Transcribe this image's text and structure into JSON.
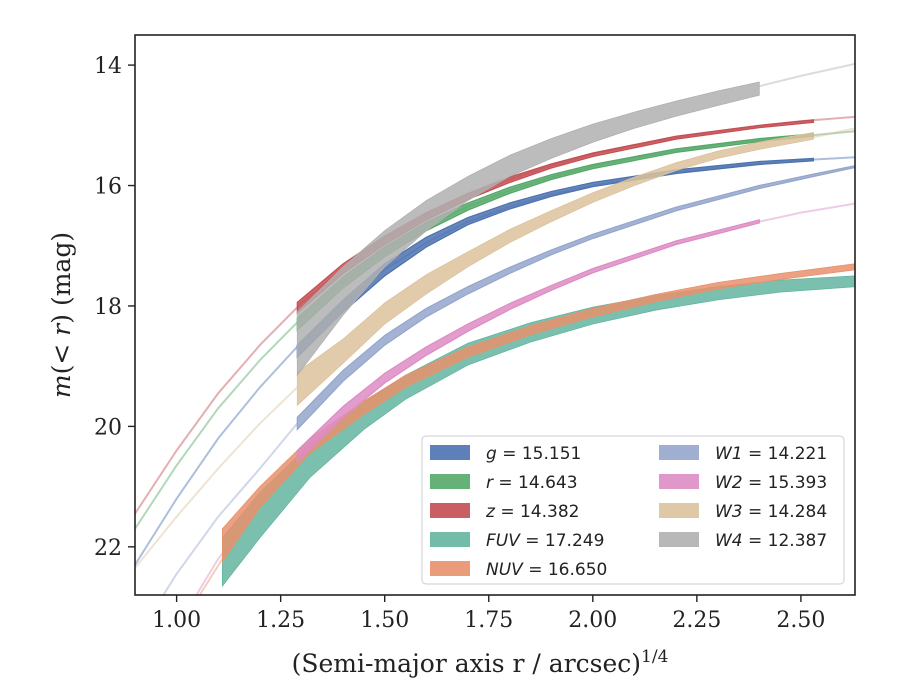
{
  "chart_data": {
    "type": "line",
    "title": "",
    "xlabel": "(Semi-major axis r / arcsec)",
    "xlabel_exponent": "1/4",
    "ylabel": "m(<r) (mag)",
    "xlim": [
      0.9,
      2.63
    ],
    "ylim": [
      22.8,
      13.5
    ],
    "y_inverted": true,
    "x_ticks": [
      "1.00",
      "1.25",
      "1.50",
      "1.75",
      "2.00",
      "2.25",
      "2.50"
    ],
    "y_ticks": [
      "14",
      "16",
      "18",
      "20",
      "22"
    ],
    "grid": false,
    "legend_position": "lower-right",
    "legend_columns": 2,
    "series": [
      {
        "name": "g = 15.151",
        "color": "#4c72b0",
        "faint": [
          [
            0.9,
            22.3
          ],
          [
            1.0,
            21.2
          ],
          [
            1.1,
            20.2
          ],
          [
            1.2,
            19.35
          ],
          [
            1.3,
            18.6
          ],
          [
            1.4,
            17.95
          ],
          [
            1.5,
            17.4
          ],
          [
            1.6,
            16.95
          ],
          [
            1.7,
            16.6
          ],
          [
            1.8,
            16.35
          ],
          [
            1.9,
            16.15
          ],
          [
            2.0,
            16.0
          ],
          [
            2.1,
            15.88
          ],
          [
            2.2,
            15.78
          ],
          [
            2.3,
            15.7
          ],
          [
            2.4,
            15.64
          ],
          [
            2.5,
            15.58
          ],
          [
            2.63,
            15.53
          ]
        ],
        "band": [
          [
            1.29,
            18.85,
            18.65
          ],
          [
            1.4,
            18.1,
            17.9
          ],
          [
            1.5,
            17.5,
            17.3
          ],
          [
            1.6,
            17.02,
            16.86
          ],
          [
            1.7,
            16.65,
            16.53
          ],
          [
            1.8,
            16.39,
            16.29
          ],
          [
            1.9,
            16.18,
            16.1
          ],
          [
            2.0,
            16.02,
            15.95
          ],
          [
            2.2,
            15.8,
            15.74
          ],
          [
            2.4,
            15.65,
            15.6
          ],
          [
            2.53,
            15.59,
            15.55
          ]
        ],
        "band_shape": "line"
      },
      {
        "name": "r = 14.643",
        "color": "#55a868",
        "faint": [
          [
            0.9,
            21.7
          ],
          [
            1.0,
            20.65
          ],
          [
            1.1,
            19.7
          ],
          [
            1.2,
            18.9
          ],
          [
            1.3,
            18.2
          ],
          [
            1.4,
            17.6
          ],
          [
            1.5,
            17.1
          ],
          [
            1.6,
            16.68
          ],
          [
            1.7,
            16.35
          ],
          [
            1.8,
            16.08
          ],
          [
            1.9,
            15.86
          ],
          [
            2.0,
            15.68
          ],
          [
            2.1,
            15.54
          ],
          [
            2.2,
            15.42
          ],
          [
            2.3,
            15.32
          ],
          [
            2.4,
            15.24
          ],
          [
            2.5,
            15.18
          ],
          [
            2.63,
            15.1
          ]
        ],
        "band": [
          [
            1.29,
            18.4,
            18.2
          ],
          [
            1.4,
            17.7,
            17.52
          ],
          [
            1.5,
            17.18,
            17.02
          ],
          [
            1.6,
            16.75,
            16.61
          ],
          [
            1.7,
            16.41,
            16.29
          ],
          [
            1.8,
            16.13,
            16.03
          ],
          [
            1.9,
            15.9,
            15.82
          ],
          [
            2.0,
            15.72,
            15.65
          ],
          [
            2.2,
            15.45,
            15.39
          ],
          [
            2.4,
            15.27,
            15.22
          ],
          [
            2.53,
            15.18,
            15.14
          ]
        ],
        "band_shape": "line"
      },
      {
        "name": "z = 14.382",
        "color": "#c44e52",
        "faint": [
          [
            0.9,
            21.45
          ],
          [
            1.0,
            20.4
          ],
          [
            1.1,
            19.45
          ],
          [
            1.2,
            18.65
          ],
          [
            1.3,
            17.95
          ],
          [
            1.4,
            17.38
          ],
          [
            1.5,
            16.9
          ],
          [
            1.6,
            16.5
          ],
          [
            1.7,
            16.17
          ],
          [
            1.8,
            15.9
          ],
          [
            1.9,
            15.67
          ],
          [
            2.0,
            15.48
          ],
          [
            2.1,
            15.33
          ],
          [
            2.2,
            15.2
          ],
          [
            2.3,
            15.1
          ],
          [
            2.4,
            15.01
          ],
          [
            2.5,
            14.93
          ],
          [
            2.63,
            14.86
          ]
        ],
        "band": [
          [
            1.29,
            18.12,
            17.94
          ],
          [
            1.4,
            17.46,
            17.3
          ],
          [
            1.5,
            16.98,
            16.84
          ],
          [
            1.6,
            16.57,
            16.45
          ],
          [
            1.7,
            16.23,
            16.13
          ],
          [
            1.8,
            15.95,
            15.86
          ],
          [
            1.9,
            15.71,
            15.64
          ],
          [
            2.0,
            15.52,
            15.46
          ],
          [
            2.2,
            15.23,
            15.18
          ],
          [
            2.4,
            15.04,
            15.0
          ],
          [
            2.53,
            14.95,
            14.91
          ]
        ],
        "band_shape": "line"
      },
      {
        "name": "FUV = 17.249",
        "color": "#64b5a0",
        "faint": [],
        "band": [
          [
            1.11,
            22.65,
            21.85
          ],
          [
            1.2,
            21.85,
            21.1
          ],
          [
            1.32,
            20.85,
            20.3
          ],
          [
            1.45,
            20.05,
            19.6
          ],
          [
            1.55,
            19.55,
            19.15
          ],
          [
            1.7,
            18.98,
            18.62
          ],
          [
            1.85,
            18.6,
            18.28
          ],
          [
            2.0,
            18.3,
            18.02
          ],
          [
            2.15,
            18.07,
            17.83
          ],
          [
            2.3,
            17.9,
            17.68
          ],
          [
            2.45,
            17.77,
            17.57
          ],
          [
            2.63,
            17.68,
            17.5
          ]
        ],
        "band_shape": "band"
      },
      {
        "name": "NUV = 16.650",
        "color": "#e8916c",
        "faint": [
          [
            1.0,
            23.5
          ],
          [
            1.06,
            22.75
          ],
          [
            1.11,
            22.2
          ]
        ],
        "band": [
          [
            1.11,
            22.25,
            21.7
          ],
          [
            1.2,
            21.35,
            21.0
          ],
          [
            1.32,
            20.45,
            20.2
          ],
          [
            1.45,
            19.8,
            19.58
          ],
          [
            1.55,
            19.35,
            19.15
          ],
          [
            1.7,
            18.85,
            18.68
          ],
          [
            1.85,
            18.48,
            18.33
          ],
          [
            2.0,
            18.18,
            18.04
          ],
          [
            2.15,
            17.93,
            17.81
          ],
          [
            2.3,
            17.72,
            17.61
          ],
          [
            2.45,
            17.56,
            17.46
          ],
          [
            2.63,
            17.4,
            17.3
          ]
        ],
        "band_shape": "band"
      },
      {
        "name": "W1 = 14.221",
        "color": "#94a6cc",
        "faint": [
          [
            0.95,
            23.0
          ],
          [
            1.0,
            22.45
          ],
          [
            1.1,
            21.5
          ],
          [
            1.2,
            20.7
          ],
          [
            1.29,
            19.95
          ]
        ],
        "band": [
          [
            1.29,
            20.05,
            19.85
          ],
          [
            1.4,
            19.25,
            19.07
          ],
          [
            1.5,
            18.65,
            18.49
          ],
          [
            1.6,
            18.18,
            18.04
          ],
          [
            1.7,
            17.8,
            17.68
          ],
          [
            1.8,
            17.46,
            17.36
          ],
          [
            1.9,
            17.15,
            17.07
          ],
          [
            2.0,
            16.88,
            16.81
          ],
          [
            2.2,
            16.42,
            16.36
          ],
          [
            2.4,
            16.05,
            16.0
          ],
          [
            2.53,
            15.85,
            15.81
          ],
          [
            2.63,
            15.7,
            15.67
          ]
        ],
        "band_shape": "line"
      },
      {
        "name": "W2 = 15.393",
        "color": "#dd8cc4",
        "faint": [
          [
            1.03,
            23.0
          ],
          [
            1.1,
            22.2
          ],
          [
            1.2,
            21.3
          ],
          [
            1.29,
            20.6
          ],
          [
            2.4,
            16.6
          ],
          [
            2.5,
            16.45
          ],
          [
            2.63,
            16.3
          ]
        ],
        "band": [
          [
            1.29,
            20.6,
            20.4
          ],
          [
            1.4,
            19.85,
            19.67
          ],
          [
            1.5,
            19.28,
            19.12
          ],
          [
            1.6,
            18.82,
            18.68
          ],
          [
            1.7,
            18.42,
            18.3
          ],
          [
            1.8,
            18.06,
            17.96
          ],
          [
            1.9,
            17.74,
            17.66
          ],
          [
            2.0,
            17.45,
            17.38
          ],
          [
            2.2,
            16.98,
            16.92
          ],
          [
            2.4,
            16.62,
            16.57
          ]
        ],
        "band_shape": "line"
      },
      {
        "name": "W3 = 14.284",
        "color": "#dcc29c",
        "faint": [
          [
            0.9,
            22.35
          ],
          [
            1.0,
            21.5
          ],
          [
            1.1,
            20.7
          ],
          [
            1.2,
            19.95
          ],
          [
            1.29,
            19.35
          ],
          [
            2.53,
            15.2
          ],
          [
            2.63,
            15.05
          ]
        ],
        "band": [
          [
            1.29,
            19.65,
            19.1
          ],
          [
            1.4,
            18.95,
            18.55
          ],
          [
            1.5,
            18.3,
            17.95
          ],
          [
            1.6,
            17.8,
            17.48
          ],
          [
            1.7,
            17.35,
            17.1
          ],
          [
            1.8,
            16.95,
            16.73
          ],
          [
            1.9,
            16.6,
            16.42
          ],
          [
            2.0,
            16.28,
            16.12
          ],
          [
            2.1,
            16.0,
            15.86
          ],
          [
            2.2,
            15.75,
            15.62
          ],
          [
            2.3,
            15.55,
            15.43
          ],
          [
            2.4,
            15.4,
            15.28
          ],
          [
            2.53,
            15.23,
            15.12
          ]
        ],
        "band_shape": "band"
      },
      {
        "name": "W4 = 12.387",
        "color": "#b0b0b0",
        "faint": [
          [
            2.4,
            14.35
          ],
          [
            2.5,
            14.18
          ],
          [
            2.63,
            13.98
          ]
        ],
        "band": [
          [
            1.29,
            19.15,
            18.1
          ],
          [
            1.4,
            18.15,
            17.35
          ],
          [
            1.5,
            17.35,
            16.75
          ],
          [
            1.6,
            16.75,
            16.25
          ],
          [
            1.7,
            16.25,
            15.85
          ],
          [
            1.8,
            15.85,
            15.5
          ],
          [
            1.9,
            15.55,
            15.22
          ],
          [
            2.0,
            15.28,
            14.98
          ],
          [
            2.1,
            15.05,
            14.78
          ],
          [
            2.2,
            14.85,
            14.6
          ],
          [
            2.3,
            14.67,
            14.43
          ],
          [
            2.4,
            14.5,
            14.28
          ]
        ],
        "band_shape": "band"
      }
    ]
  }
}
